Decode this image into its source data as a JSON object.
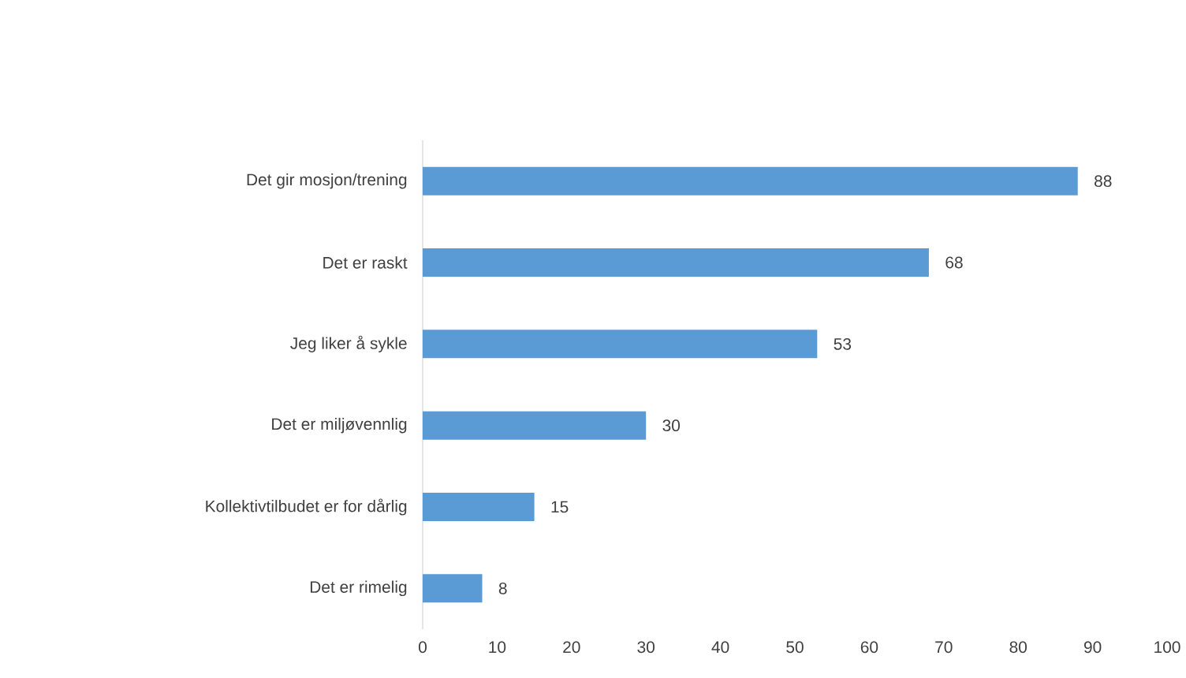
{
  "chart_data": {
    "type": "bar",
    "orientation": "horizontal",
    "categories": [
      "Det gir mosjon/trening",
      "Det er raskt",
      "Jeg liker å sykle",
      "Det er miljøvennlig",
      "Kollektivtilbudet er for dårlig",
      "Det er rimelig"
    ],
    "values": [
      88,
      68,
      53,
      30,
      15,
      8
    ],
    "color": "#5b9bd5",
    "xlim": [
      0,
      100
    ],
    "xticks": [
      0,
      10,
      20,
      30,
      40,
      50,
      60,
      70,
      80,
      90,
      100
    ],
    "data_labels": true,
    "grid": false
  }
}
